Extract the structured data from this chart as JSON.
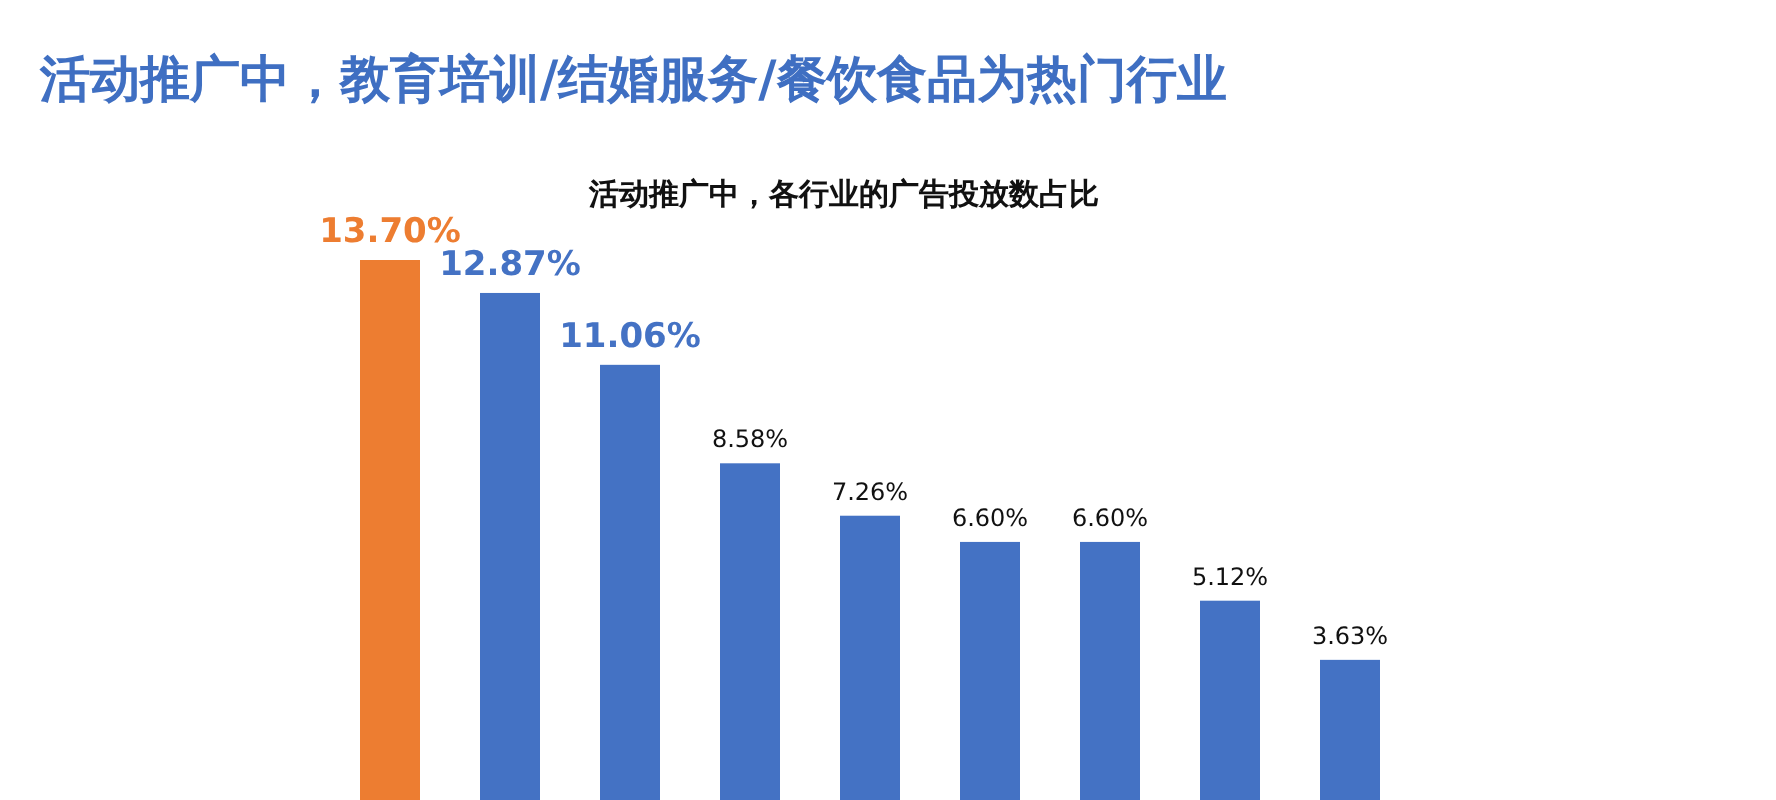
{
  "chart_data": {
    "type": "bar",
    "title": "活动推广中，教育培训/结婚服务/餐饮食品为热门行业",
    "subtitle": "活动推广中，各行业的广告投放数占比",
    "categories": [
      null,
      null,
      null,
      null,
      null,
      null,
      null,
      null,
      null
    ],
    "values": [
      13.7,
      12.87,
      11.06,
      8.58,
      7.26,
      6.6,
      6.6,
      5.12,
      3.63
    ],
    "colors": [
      "#ed7d31",
      "#4472c4",
      "#4472c4",
      "#4472c4",
      "#4472c4",
      "#4472c4",
      "#4472c4",
      "#4472c4",
      "#4472c4"
    ],
    "value_labels": [
      "13.70%",
      "12.87%",
      "11.06%",
      "8.58%",
      "7.26%",
      "6.60%",
      "6.60%",
      "5.12%",
      "3.63%"
    ]
  }
}
